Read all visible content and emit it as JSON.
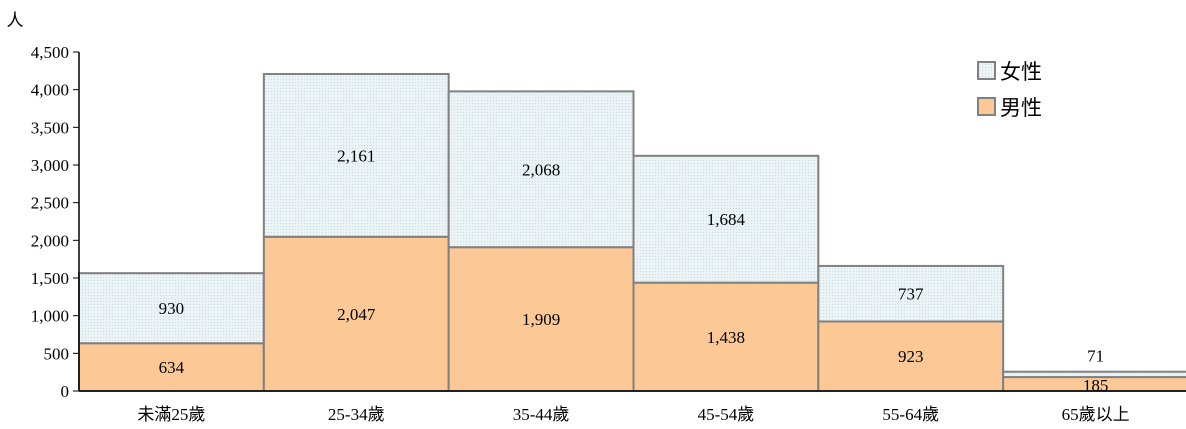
{
  "chart_data": {
    "type": "bar",
    "stacked": true,
    "unit_label": "人",
    "categories": [
      "未滿25歲",
      "25-34歲",
      "35-44歲",
      "45-54歲",
      "55-64歲",
      "65歲以上"
    ],
    "series": [
      {
        "name": "男性",
        "values": [
          634,
          2047,
          1909,
          1438,
          923,
          185
        ],
        "labels": [
          "634",
          "2,047",
          "1,909",
          "1,438",
          "923",
          "185"
        ]
      },
      {
        "name": "女性",
        "values": [
          930,
          2161,
          2068,
          1684,
          737,
          71
        ],
        "labels": [
          "930",
          "2,161",
          "2,068",
          "1,684",
          "737",
          "71"
        ]
      }
    ],
    "ylim": [
      0,
      4500
    ],
    "yticks": [
      0,
      500,
      1000,
      1500,
      2000,
      2500,
      3000,
      3500,
      4000,
      4500
    ],
    "ytick_labels": [
      "0",
      "500",
      "1,000",
      "1,500",
      "2,000",
      "2,500",
      "3,000",
      "3,500",
      "4,000",
      "4,500"
    ],
    "legend": {
      "position": "top-right",
      "order": [
        "女性",
        "男性"
      ]
    },
    "grid": false,
    "colors": {
      "男性": "#fbc896",
      "女性": "#ebf3f5",
      "edge": "#808080"
    }
  }
}
